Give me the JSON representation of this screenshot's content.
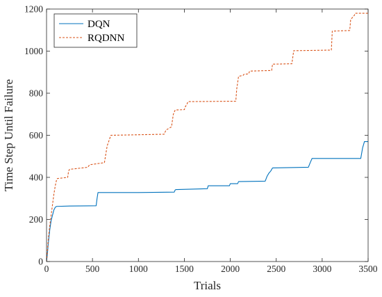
{
  "chart_data": {
    "type": "line",
    "xlabel": "Trials",
    "ylabel": "Time Step Until Failure",
    "xlim": [
      0,
      3500
    ],
    "ylim": [
      0,
      1200
    ],
    "xticks": [
      0,
      500,
      1000,
      1500,
      2000,
      2500,
      3000,
      3500
    ],
    "yticks": [
      0,
      200,
      400,
      600,
      800,
      1000,
      1200
    ],
    "xtick_labels": [
      "0",
      "500",
      "1000",
      "1500",
      "2000",
      "2500",
      "3000",
      "3500"
    ],
    "ytick_labels": [
      "0",
      "200",
      "400",
      "600",
      "800",
      "1000",
      "1200"
    ],
    "grid": false,
    "legend_position": "top-left",
    "series": [
      {
        "name": "DQN",
        "color": "#0072BD",
        "style": "solid",
        "x": [
          0,
          10,
          20,
          35,
          50,
          65,
          80,
          95,
          110,
          250,
          540,
          550,
          560,
          1000,
          1390,
          1400,
          1410,
          1750,
          1760,
          1990,
          2000,
          2080,
          2090,
          2380,
          2400,
          2420,
          2440,
          2460,
          2850,
          2870,
          2890,
          3000,
          3420,
          3440,
          3460,
          3500
        ],
        "y": [
          0,
          40,
          90,
          150,
          195,
          220,
          245,
          258,
          262,
          264,
          265,
          300,
          328,
          328,
          330,
          340,
          342,
          346,
          360,
          360,
          370,
          370,
          380,
          382,
          405,
          420,
          430,
          445,
          448,
          470,
          490,
          490,
          490,
          540,
          570,
          570
        ]
      },
      {
        "name": "RQDNN",
        "color": "#D95319",
        "style": "dashed",
        "x": [
          0,
          10,
          20,
          35,
          50,
          65,
          80,
          95,
          110,
          120,
          130,
          230,
          240,
          250,
          450,
          460,
          470,
          630,
          660,
          700,
          1280,
          1300,
          1320,
          1360,
          1380,
          1400,
          1500,
          1510,
          1530,
          1540,
          2060,
          2070,
          2080,
          2090,
          2140,
          2150,
          2200,
          2210,
          2450,
          2460,
          2670,
          2680,
          2690,
          3100,
          3110,
          3300,
          3310,
          3350,
          3360,
          3500
        ],
        "y": [
          0,
          50,
          110,
          170,
          220,
          270,
          320,
          360,
          390,
          395,
          395,
          400,
          430,
          438,
          448,
          455,
          460,
          470,
          550,
          600,
          605,
          625,
          630,
          640,
          700,
          720,
          722,
          735,
          750,
          760,
          762,
          820,
          850,
          880,
          885,
          890,
          892,
          905,
          908,
          938,
          940,
          970,
          1002,
          1005,
          1095,
          1098,
          1150,
          1170,
          1180,
          1180
        ]
      }
    ]
  }
}
